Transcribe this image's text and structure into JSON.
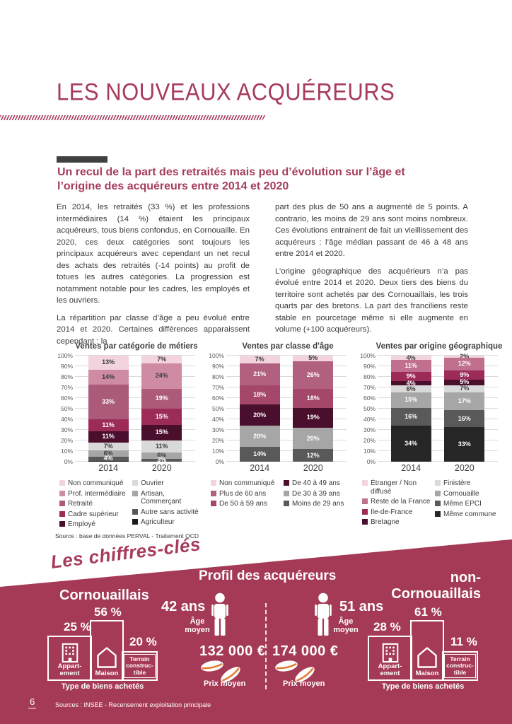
{
  "colors": {
    "accent": "#a63c5b",
    "band": "#a53a56",
    "section_bar": "#3f4040",
    "coin_stripe": "#e2792f"
  },
  "header": {
    "title": "LES NOUVEAUX ACQUÉREURS"
  },
  "intro": {
    "subtitle": "Un recul de la part des retraités mais peu d’évolution sur l’âge et l’origine des acquéreurs entre 2014 et 2020",
    "col1_p1": "En 2014, les retraités (33 %) et les professions intermédiaires (14 %) étaient les principaux acquéreurs, tous biens confondus, en Cornouaille.  En 2020, ces deux catégories sont toujours les principaux acquéreurs avec cependant un net recul des achats des retraités (-14 points) au profit de totues les autres catégories. La progression est notamment notable pour les cadres, les employés et les ouvriers.",
    "col1_p2": "La répartition par classe d’âge a peu évolué entre 2014 et 2020. Certaines différences apparaissent cependant :  la",
    "col2_p1": "part des plus de 50 ans a augmenté de 5 points. A contrario, les moins de 29 ans sont moins nombreux. Ces évolutions entrainent de fait un vieillissement des acquéreurs : l’âge médian passant de 46 à 48 ans entre 2014 et 2020.",
    "col2_p2": "L’origine géographique des acquérieurs n’a pas évolué entre 2014 et 2020. Deux tiers des biens du territoire sont achetés par des Cornouaillais, les trois quarts par des bretons. La part des franciliens reste stable en pourcetage même si elle augmente en volume (+100 acquéreurs)."
  },
  "chart_data": [
    {
      "type": "bar",
      "stacked": true,
      "title": "Ventes par catégorie de métiers",
      "categories": [
        "2014",
        "2020"
      ],
      "ylim": [
        0,
        100
      ],
      "yticks_percent": [
        0,
        10,
        20,
        30,
        40,
        50,
        60,
        70,
        80,
        90,
        100
      ],
      "series": [
        {
          "name": "Agriculteur",
          "color": "#1a1a1a",
          "label_color": "white",
          "values": [
            1,
            0
          ]
        },
        {
          "name": "Autre sans activité",
          "color": "#595959",
          "label_color": "white",
          "values": [
            4,
            3
          ]
        },
        {
          "name": "Artisan, Commerçant",
          "color": "#a6a6a6",
          "label_color": "dark",
          "values": [
            6,
            6
          ]
        },
        {
          "name": "Ouvrier",
          "color": "#d9d9d9",
          "label_color": "dark",
          "values": [
            7,
            11
          ]
        },
        {
          "name": "Employé",
          "color": "#4b0f2e",
          "label_color": "white",
          "values": [
            11,
            15
          ]
        },
        {
          "name": "Cadre supérieur",
          "color": "#9c2b58",
          "label_color": "white",
          "values": [
            11,
            15
          ]
        },
        {
          "name": "Retraité",
          "color": "#ab5a7a",
          "label_color": "white",
          "values": [
            33,
            19
          ]
        },
        {
          "name": "Prof. intermédiaire",
          "color": "#cf8aa4",
          "label_color": "dark",
          "values": [
            14,
            24
          ]
        },
        {
          "name": "Non communiqué",
          "color": "#f2d3de",
          "label_color": "dark",
          "values": [
            13,
            7
          ]
        }
      ],
      "legend_cols": [
        [
          "Non communiqué",
          "Prof. intermédiaire",
          "Retraité",
          "Cadre supérieur",
          "Employé"
        ],
        [
          "Ouvrier",
          "Artisan, Commerçant",
          "Autre sans activité",
          "Agriculteur"
        ]
      ]
    },
    {
      "type": "bar",
      "stacked": true,
      "title": "Ventes par classe d'âge",
      "categories": [
        "2014",
        "2020"
      ],
      "ylim": [
        0,
        100
      ],
      "yticks_percent": [
        0,
        10,
        20,
        30,
        40,
        50,
        60,
        70,
        80,
        90,
        100
      ],
      "series": [
        {
          "name": "Moins de 29 ans",
          "color": "#595959",
          "label_color": "white",
          "values": [
            14,
            12
          ]
        },
        {
          "name": "De 30 à 39 ans",
          "color": "#a6a6a6",
          "label_color": "white",
          "values": [
            20,
            20
          ]
        },
        {
          "name": "De 40 à 49 ans",
          "color": "#4b0f2e",
          "label_color": "white",
          "values": [
            20,
            19
          ]
        },
        {
          "name": "De 50 à 59 ans",
          "color": "#a4476b",
          "label_color": "white",
          "values": [
            18,
            18
          ]
        },
        {
          "name": "Plus de 60 ans",
          "color": "#b2607f",
          "label_color": "white",
          "values": [
            21,
            26
          ]
        },
        {
          "name": "Non communiqué",
          "color": "#f2d3de",
          "label_color": "dark",
          "values": [
            7,
            5
          ]
        }
      ],
      "legend_cols": [
        [
          "Non communiqué",
          "Plus de 60 ans",
          "De 50 à 59 ans"
        ],
        [
          "De 40 à 49 ans",
          "De 30 à 39 ans",
          "Moins de 29 ans"
        ]
      ]
    },
    {
      "type": "bar",
      "stacked": true,
      "title": "Ventes par origine géographique",
      "categories": [
        "2014",
        "2020"
      ],
      "ylim": [
        0,
        100
      ],
      "yticks_percent": [
        0,
        10,
        20,
        30,
        40,
        50,
        60,
        70,
        80,
        90,
        100
      ],
      "series": [
        {
          "name": "Même commune",
          "color": "#262626",
          "label_color": "white",
          "values": [
            34,
            33
          ]
        },
        {
          "name": "Même EPCI",
          "color": "#595959",
          "label_color": "white",
          "values": [
            16,
            16
          ]
        },
        {
          "name": "Cornouaille",
          "color": "#a6a6a6",
          "label_color": "white",
          "values": [
            15,
            17
          ]
        },
        {
          "name": "Finistère",
          "color": "#d9d9d9",
          "label_color": "dark",
          "values": [
            6,
            7
          ]
        },
        {
          "name": "Bretagne",
          "color": "#4b0f2e",
          "label_color": "white",
          "values": [
            4,
            5
          ]
        },
        {
          "name": "Ile-de-France",
          "color": "#9c2b58",
          "label_color": "white",
          "values": [
            9,
            9
          ]
        },
        {
          "name": "Reste de la France",
          "color": "#c06f8e",
          "label_color": "white",
          "values": [
            11,
            12
          ]
        },
        {
          "name": "Étranger / Non diffusé",
          "color": "#f2d3de",
          "label_color": "dark",
          "values": [
            4,
            2
          ]
        }
      ],
      "legend_cols": [
        [
          "Étranger / Non diffusé",
          "Reste de la France",
          "Ile-de-France",
          "Bretagne"
        ],
        [
          "Finistère",
          "Cornouaille",
          "Même EPCI",
          "Même commune"
        ]
      ]
    }
  ],
  "chart_source": "Source : base de données PERVAL - Traitement QCD",
  "key_figures": {
    "heading": "Les chiffres-clés",
    "profile_title": "Profil des acquéreurs",
    "type_caption": "Type de biens achetés",
    "age_caption_l1": "Âge",
    "age_caption_l2": "moyen",
    "price_caption": "Prix moyen",
    "labels": {
      "apartment_l1": "Appart-",
      "apartment_l2": "ement",
      "house": "Maison",
      "land_l1": "Terrain",
      "land_l2": "construc-",
      "land_l3": "tible"
    },
    "left": {
      "group": "Cornouaillais",
      "age": "42 ans",
      "price": "132 000 €",
      "apartment_pct": "25 %",
      "house_pct": "56 %",
      "land_pct": "20 %"
    },
    "right": {
      "group_l1": "non-",
      "group_l2": "Cornouaillais",
      "age": "51 ans",
      "price": "174 000 €",
      "apartment_pct": "28 %",
      "house_pct": "61 %",
      "land_pct": "11 %"
    }
  },
  "footer": {
    "page_number": "6",
    "source": "Sources : INSEE - Recensement exploitation principale"
  }
}
